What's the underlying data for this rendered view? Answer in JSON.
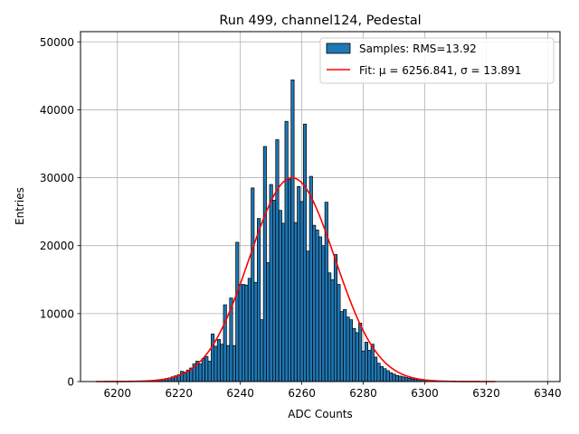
{
  "chart_data": {
    "type": "bar",
    "title": "Run 499, channel124, Pedestal",
    "xlabel": "ADC Counts",
    "ylabel": "Entries",
    "xlim": [
      6188,
      6344
    ],
    "ylim": [
      0,
      51500
    ],
    "xticks": [
      6200,
      6220,
      6240,
      6260,
      6280,
      6300,
      6320,
      6340
    ],
    "yticks": [
      0,
      10000,
      20000,
      30000,
      40000,
      50000
    ],
    "grid": true,
    "legend_position": "top-right",
    "series": [
      {
        "name": "Samples: RMS=13.92",
        "kind": "histogram",
        "color": "#1f77b4",
        "edgecolor": "#000000",
        "bins": [
          [
            6210,
            100
          ],
          [
            6211,
            150
          ],
          [
            6212,
            200
          ],
          [
            6213,
            250
          ],
          [
            6214,
            300
          ],
          [
            6215,
            350
          ],
          [
            6216,
            450
          ],
          [
            6217,
            550
          ],
          [
            6218,
            700
          ],
          [
            6219,
            850
          ],
          [
            6220,
            1000
          ],
          [
            6221,
            1500
          ],
          [
            6222,
            1400
          ],
          [
            6223,
            1700
          ],
          [
            6224,
            2000
          ],
          [
            6225,
            2600
          ],
          [
            6226,
            3000
          ],
          [
            6227,
            2600
          ],
          [
            6228,
            3400
          ],
          [
            6229,
            3700
          ],
          [
            6230,
            3000
          ],
          [
            6231,
            7000
          ],
          [
            6232,
            5200
          ],
          [
            6233,
            6200
          ],
          [
            6234,
            5500
          ],
          [
            6235,
            11300
          ],
          [
            6236,
            5300
          ],
          [
            6237,
            12300
          ],
          [
            6238,
            5300
          ],
          [
            6239,
            20500
          ],
          [
            6240,
            14300
          ],
          [
            6241,
            14300
          ],
          [
            6242,
            14200
          ],
          [
            6243,
            15200
          ],
          [
            6244,
            28500
          ],
          [
            6245,
            14600
          ],
          [
            6246,
            24000
          ],
          [
            6247,
            9100
          ],
          [
            6248,
            34600
          ],
          [
            6249,
            17500
          ],
          [
            6250,
            29000
          ],
          [
            6251,
            26700
          ],
          [
            6252,
            35600
          ],
          [
            6253,
            25200
          ],
          [
            6254,
            23300
          ],
          [
            6255,
            38300
          ],
          [
            6256,
            29800
          ],
          [
            6257,
            44400
          ],
          [
            6258,
            23400
          ],
          [
            6259,
            28700
          ],
          [
            6260,
            26500
          ],
          [
            6261,
            37900
          ],
          [
            6262,
            19200
          ],
          [
            6263,
            30200
          ],
          [
            6264,
            23000
          ],
          [
            6265,
            22300
          ],
          [
            6266,
            21300
          ],
          [
            6267,
            20000
          ],
          [
            6268,
            26400
          ],
          [
            6269,
            16000
          ],
          [
            6270,
            15000
          ],
          [
            6271,
            18700
          ],
          [
            6272,
            14300
          ],
          [
            6273,
            10300
          ],
          [
            6274,
            10600
          ],
          [
            6275,
            9500
          ],
          [
            6276,
            9100
          ],
          [
            6277,
            7800
          ],
          [
            6278,
            7200
          ],
          [
            6279,
            8600
          ],
          [
            6280,
            4500
          ],
          [
            6281,
            5800
          ],
          [
            6282,
            4600
          ],
          [
            6283,
            5500
          ],
          [
            6284,
            3600
          ],
          [
            6285,
            2700
          ],
          [
            6286,
            2200
          ],
          [
            6287,
            1900
          ],
          [
            6288,
            1600
          ],
          [
            6289,
            1300
          ],
          [
            6290,
            1100
          ],
          [
            6291,
            900
          ],
          [
            6292,
            800
          ],
          [
            6293,
            700
          ],
          [
            6294,
            600
          ],
          [
            6295,
            500
          ],
          [
            6296,
            400
          ],
          [
            6297,
            350
          ],
          [
            6298,
            300
          ],
          [
            6299,
            250
          ],
          [
            6300,
            200
          ],
          [
            6301,
            150
          ],
          [
            6302,
            100
          ]
        ]
      },
      {
        "name": "Fit: μ = 6256.841, σ = 13.891",
        "kind": "gaussian_fit",
        "color": "#ff0000",
        "mu": 6256.841,
        "sigma": 13.891,
        "amplitude": 30000,
        "x_range": [
          6193,
          6323
        ]
      }
    ]
  }
}
